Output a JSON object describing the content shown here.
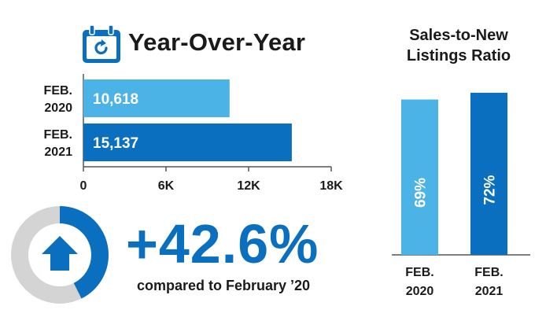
{
  "colors": {
    "light_blue": "#4cb3e6",
    "dark_blue": "#0a6fbe",
    "gray": "#d4d4d4",
    "text": "#1a1a1a"
  },
  "header": {
    "icon": "calendar-refresh-icon",
    "title": "Year-Over-Year"
  },
  "ratio_header": {
    "title_line1": "Sales-to-New",
    "title_line2": "Listings Ratio"
  },
  "change": {
    "percent_text": "+42.6%",
    "caption": "compared to February ’20",
    "icon": "arrow-up-icon",
    "ring_fraction": 0.426
  },
  "chart_data": [
    {
      "type": "bar",
      "orientation": "horizontal",
      "categories": [
        "FEB.\n2020",
        "FEB.\n2021"
      ],
      "category_lines": [
        [
          "FEB.",
          "2020"
        ],
        [
          "FEB.",
          "2021"
        ]
      ],
      "values": [
        10618,
        15137
      ],
      "value_labels": [
        "10,618",
        "15,137"
      ],
      "bar_colors": [
        "#4cb3e6",
        "#0a6fbe"
      ],
      "xlim": [
        0,
        18000
      ],
      "x_ticks": [
        0,
        6000,
        12000,
        18000
      ],
      "x_tick_labels": [
        "0",
        "6K",
        "12K",
        "18K"
      ],
      "title": "Year-Over-Year",
      "grid": false
    },
    {
      "type": "bar",
      "orientation": "vertical",
      "categories": [
        "FEB.\n2020",
        "FEB.\n2021"
      ],
      "category_lines": [
        [
          "FEB.",
          "2020"
        ],
        [
          "FEB.",
          "2021"
        ]
      ],
      "values": [
        69,
        72
      ],
      "value_labels": [
        "69%",
        "72%"
      ],
      "bar_colors": [
        "#4cb3e6",
        "#0a6fbe"
      ],
      "ylim": [
        0,
        80
      ],
      "title": "Sales-to-New Listings Ratio",
      "grid": false
    }
  ]
}
